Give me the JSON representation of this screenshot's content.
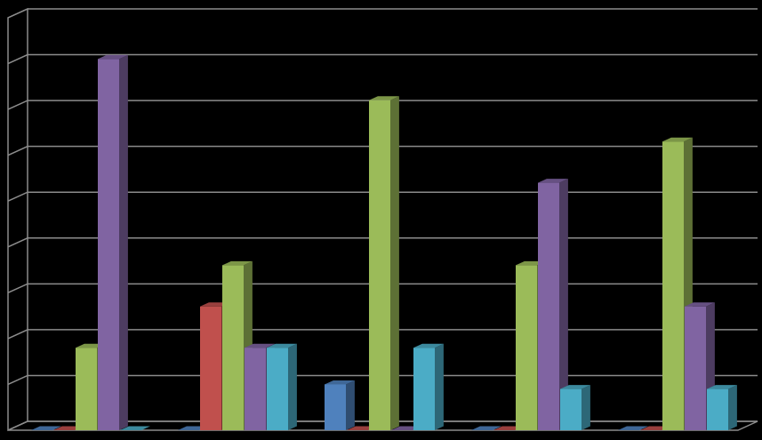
{
  "chart_data": {
    "type": "bar",
    "title": "",
    "xlabel": "",
    "ylabel": "",
    "ylim": [
      0,
      9
    ],
    "grid": true,
    "legend": "none",
    "categories": [
      "",
      "",
      "",
      "",
      ""
    ],
    "series": [
      {
        "color": "#4f81bd",
        "values": [
          0,
          0,
          1,
          0,
          0
        ]
      },
      {
        "color": "#c0504d",
        "values": [
          0,
          2.7,
          0,
          0,
          0
        ]
      },
      {
        "color": "#9bbb59",
        "values": [
          1.8,
          3.6,
          7.2,
          3.6,
          6.3
        ]
      },
      {
        "color": "#8064a2",
        "values": [
          8.1,
          1.8,
          0,
          5.4,
          2.7
        ]
      },
      {
        "color": "#4bacc6",
        "values": [
          0,
          1.8,
          1.8,
          0.9,
          0.9
        ]
      }
    ]
  }
}
